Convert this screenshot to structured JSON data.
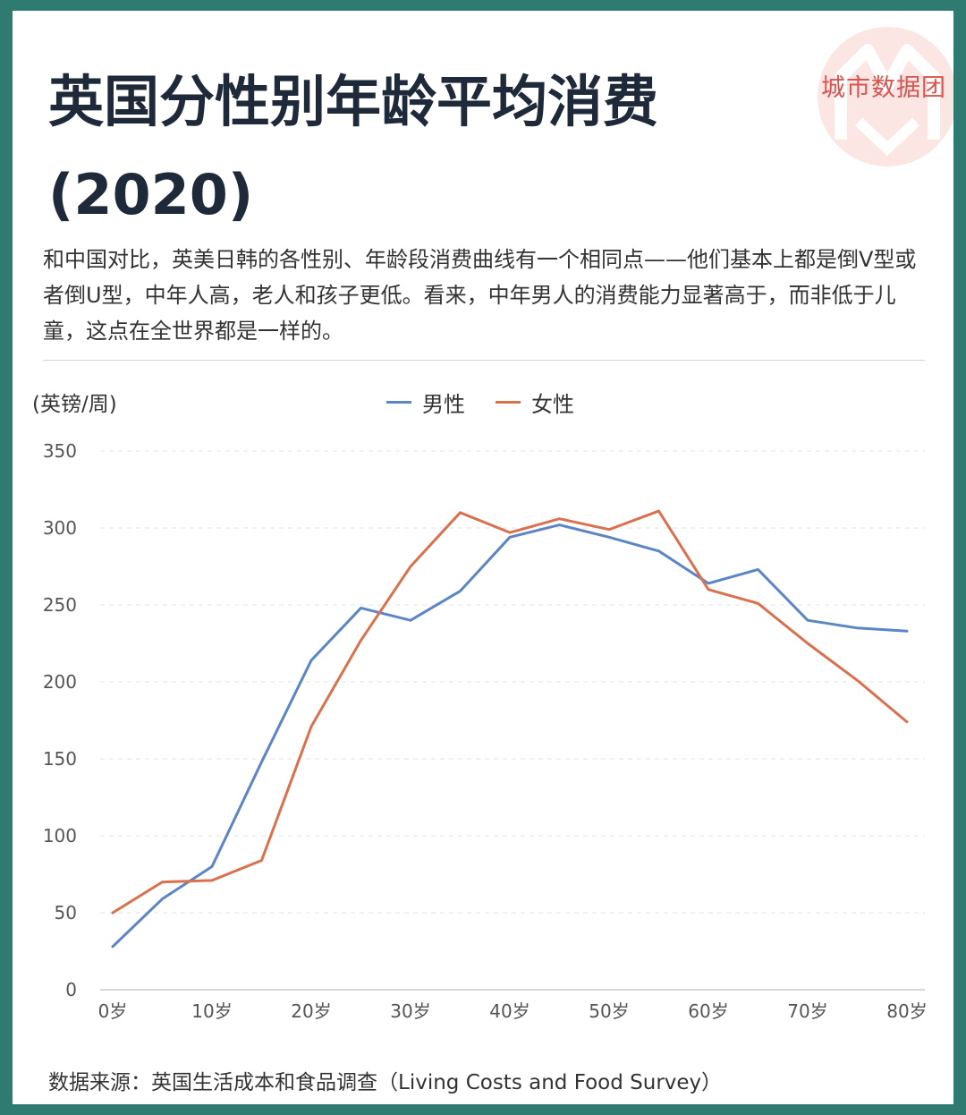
{
  "header": {
    "title_line1": "英国分性别年龄平均消费",
    "title_line2": "(2020)",
    "brand": "城市数据团"
  },
  "description": "和中国对比，英美日韩的各性别、年龄段消费曲线有一个相同点——他们基本上都是倒V型或者倒U型，中年人高，老人和孩子更低。看来，中年男人的消费能力显著高于，而非低于儿童，这点在全世界都是一样的。",
  "footer": {
    "source": "数据来源：英国生活成本和食品调查（Living Costs and Food Survey）"
  },
  "colors": {
    "background": "#2f7b72",
    "male": "#5b85c4",
    "female": "#d9714e",
    "grid": "#e3e3e3"
  },
  "chart_data": {
    "type": "line",
    "ylabel": "(英镑/周)",
    "ylim": [
      0,
      350
    ],
    "yticks": [
      0,
      50,
      100,
      150,
      200,
      250,
      300,
      350
    ],
    "x": [
      0,
      5,
      10,
      15,
      20,
      25,
      30,
      35,
      40,
      45,
      50,
      55,
      60,
      65,
      70,
      75,
      80
    ],
    "xticks": [
      0,
      10,
      20,
      30,
      40,
      50,
      60,
      70,
      80
    ],
    "xtick_labels": [
      "0岁",
      "10岁",
      "20岁",
      "30岁",
      "40岁",
      "50岁",
      "60岁",
      "70岁",
      "80岁"
    ],
    "grid": "horizontal-dashed",
    "legend_position": "top-center",
    "series": [
      {
        "name": "男性",
        "color": "#5b85c4",
        "values": [
          28,
          59,
          80,
          148,
          214,
          248,
          240,
          259,
          294,
          302,
          294,
          285,
          264,
          273,
          240,
          235,
          233
        ]
      },
      {
        "name": "女性",
        "color": "#d9714e",
        "values": [
          50,
          70,
          71,
          84,
          171,
          227,
          275,
          310,
          297,
          306,
          299,
          311,
          260,
          251,
          225,
          201,
          174
        ]
      }
    ]
  }
}
